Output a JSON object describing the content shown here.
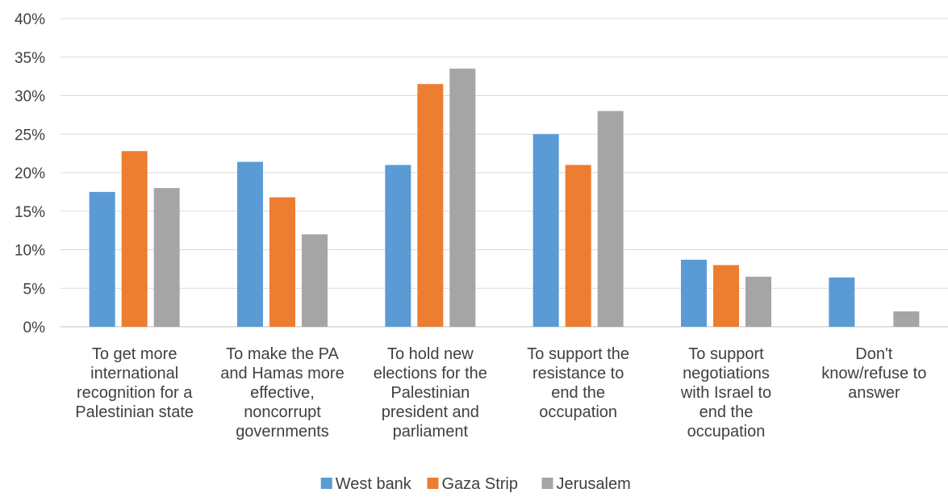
{
  "chart_data": {
    "type": "bar",
    "title": "",
    "xlabel": "",
    "ylabel": "",
    "ylim": [
      0,
      40
    ],
    "y_ticks": [
      "0%",
      "5%",
      "10%",
      "15%",
      "20%",
      "25%",
      "30%",
      "35%",
      "40%"
    ],
    "grid": true,
    "legend_position": "bottom",
    "categories": [
      "To get more international recognition for a Palestinian state",
      "To make the PA and Hamas more effective, noncorrupt governments",
      "To hold new elections for the Palestinian president and parliament",
      "To support the resistance to end the occupation",
      "To support negotiations with Israel to end the occupation",
      "Don't know/refuse to answer"
    ],
    "category_lines": [
      [
        "To get more",
        "international",
        "recognition for a",
        "Palestinian state"
      ],
      [
        "To make the PA",
        "and Hamas more",
        "effective,",
        "noncorrupt",
        "governments"
      ],
      [
        "To hold new",
        "elections for the",
        "Palestinian",
        "president and",
        "parliament"
      ],
      [
        "To support the",
        "resistance to",
        "end the",
        "occupation"
      ],
      [
        "To support",
        "negotiations",
        "with Israel to",
        "end the",
        "occupation"
      ],
      [
        "Don't",
        "know/refuse to",
        "answer"
      ]
    ],
    "series": [
      {
        "name": "West bank",
        "color": "#5b9bd5",
        "values": [
          17.5,
          21.4,
          21.0,
          25.0,
          8.7,
          6.4
        ]
      },
      {
        "name": "Gaza Strip",
        "color": "#ed7d31",
        "values": [
          22.8,
          16.8,
          31.5,
          21.0,
          8.0,
          0.0
        ]
      },
      {
        "name": "Jerusalem",
        "color": "#a5a5a5",
        "values": [
          18.0,
          12.0,
          33.5,
          28.0,
          6.5,
          2.0
        ]
      }
    ]
  }
}
